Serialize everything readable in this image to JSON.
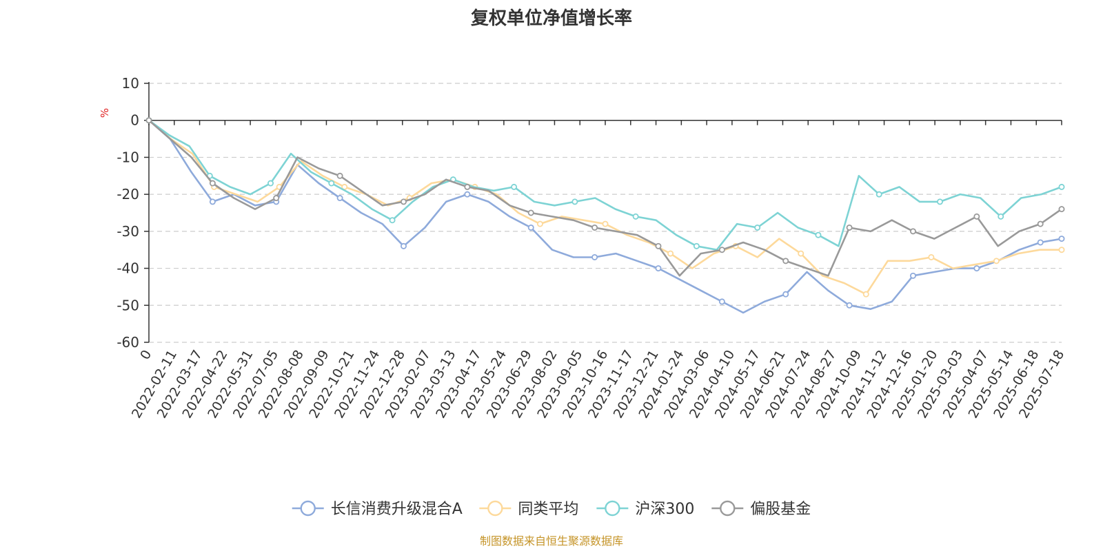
{
  "chart_data": {
    "type": "line",
    "title": "复权单位净值增长率",
    "y_unit": "%",
    "ylim": [
      -60,
      10
    ],
    "y_ticks": [
      10,
      0,
      -10,
      -20,
      -30,
      -40,
      -50,
      -60
    ],
    "x_tick_labels": [
      "0",
      "2022-02-11",
      "2022-03-17",
      "2022-04-22",
      "2022-05-31",
      "2022-07-05",
      "2022-08-08",
      "2022-09-09",
      "2022-10-21",
      "2022-11-24",
      "2022-12-28",
      "2023-02-07",
      "2023-03-13",
      "2023-04-17",
      "2023-05-24",
      "2023-06-29",
      "2023-08-02",
      "2023-09-05",
      "2023-10-16",
      "2023-11-17",
      "2023-12-21",
      "2024-01-24",
      "2024-03-06",
      "2024-04-10",
      "2024-05-17",
      "2024-06-21",
      "2024-07-24",
      "2024-08-27",
      "2024-10-09",
      "2024-11-12",
      "2024-12-16",
      "2025-01-20",
      "2025-03-03",
      "2025-04-07",
      "2025-05-14",
      "2025-06-18",
      "2025-07-18"
    ],
    "grid": "dashed horizontal",
    "legend_position": "bottom",
    "source": "制图数据来自恒生聚源数据库",
    "series": [
      {
        "name": "长信消费升级混合A",
        "color": "#8eaadb",
        "values": [
          0,
          -5,
          -14,
          -22,
          -20,
          -23,
          -22,
          -12,
          -17,
          -21,
          -25,
          -28,
          -34,
          -29,
          -22,
          -20,
          -22,
          -26,
          -29,
          -35,
          -37,
          -37,
          -36,
          -38,
          -40,
          -43,
          -46,
          -49,
          -52,
          -49,
          -47,
          -41,
          -46,
          -50,
          -51,
          -49,
          -42,
          -41,
          -40,
          -40,
          -38,
          -35,
          -33,
          -32
        ]
      },
      {
        "name": "同类平均",
        "color": "#fdd99b",
        "values": [
          0,
          -5,
          -9,
          -18,
          -20,
          -22,
          -18,
          -11,
          -15,
          -18,
          -20,
          -23,
          -21,
          -17,
          -16,
          -18,
          -20,
          -25,
          -28,
          -26,
          -27,
          -28,
          -31,
          -33,
          -36,
          -40,
          -36,
          -34,
          -37,
          -32,
          -36,
          -42,
          -44,
          -47,
          -38,
          -38,
          -37,
          -40,
          -39,
          -38,
          -36,
          -35,
          -35
        ]
      },
      {
        "name": "沪深300",
        "color": "#7dd3d4",
        "values": [
          0,
          -4,
          -7,
          -15,
          -18,
          -20,
          -17,
          -9,
          -14,
          -17,
          -20,
          -24,
          -27,
          -22,
          -18,
          -16,
          -18,
          -19,
          -18,
          -22,
          -23,
          -22,
          -21,
          -24,
          -26,
          -27,
          -31,
          -34,
          -35,
          -28,
          -29,
          -25,
          -29,
          -31,
          -34,
          -15,
          -20,
          -18,
          -22,
          -22,
          -20,
          -21,
          -26,
          -21,
          -20,
          -18
        ]
      },
      {
        "name": "偏股基金",
        "color": "#999999",
        "values": [
          0,
          -5,
          -10,
          -17,
          -21,
          -24,
          -21,
          -10,
          -13,
          -15,
          -19,
          -23,
          -22,
          -20,
          -16,
          -18,
          -19,
          -23,
          -25,
          -26,
          -27,
          -29,
          -30,
          -31,
          -34,
          -42,
          -36,
          -35,
          -33,
          -35,
          -38,
          -40,
          -42,
          -29,
          -30,
          -27,
          -30,
          -32,
          -29,
          -26,
          -34,
          -30,
          -28,
          -24
        ]
      }
    ]
  }
}
